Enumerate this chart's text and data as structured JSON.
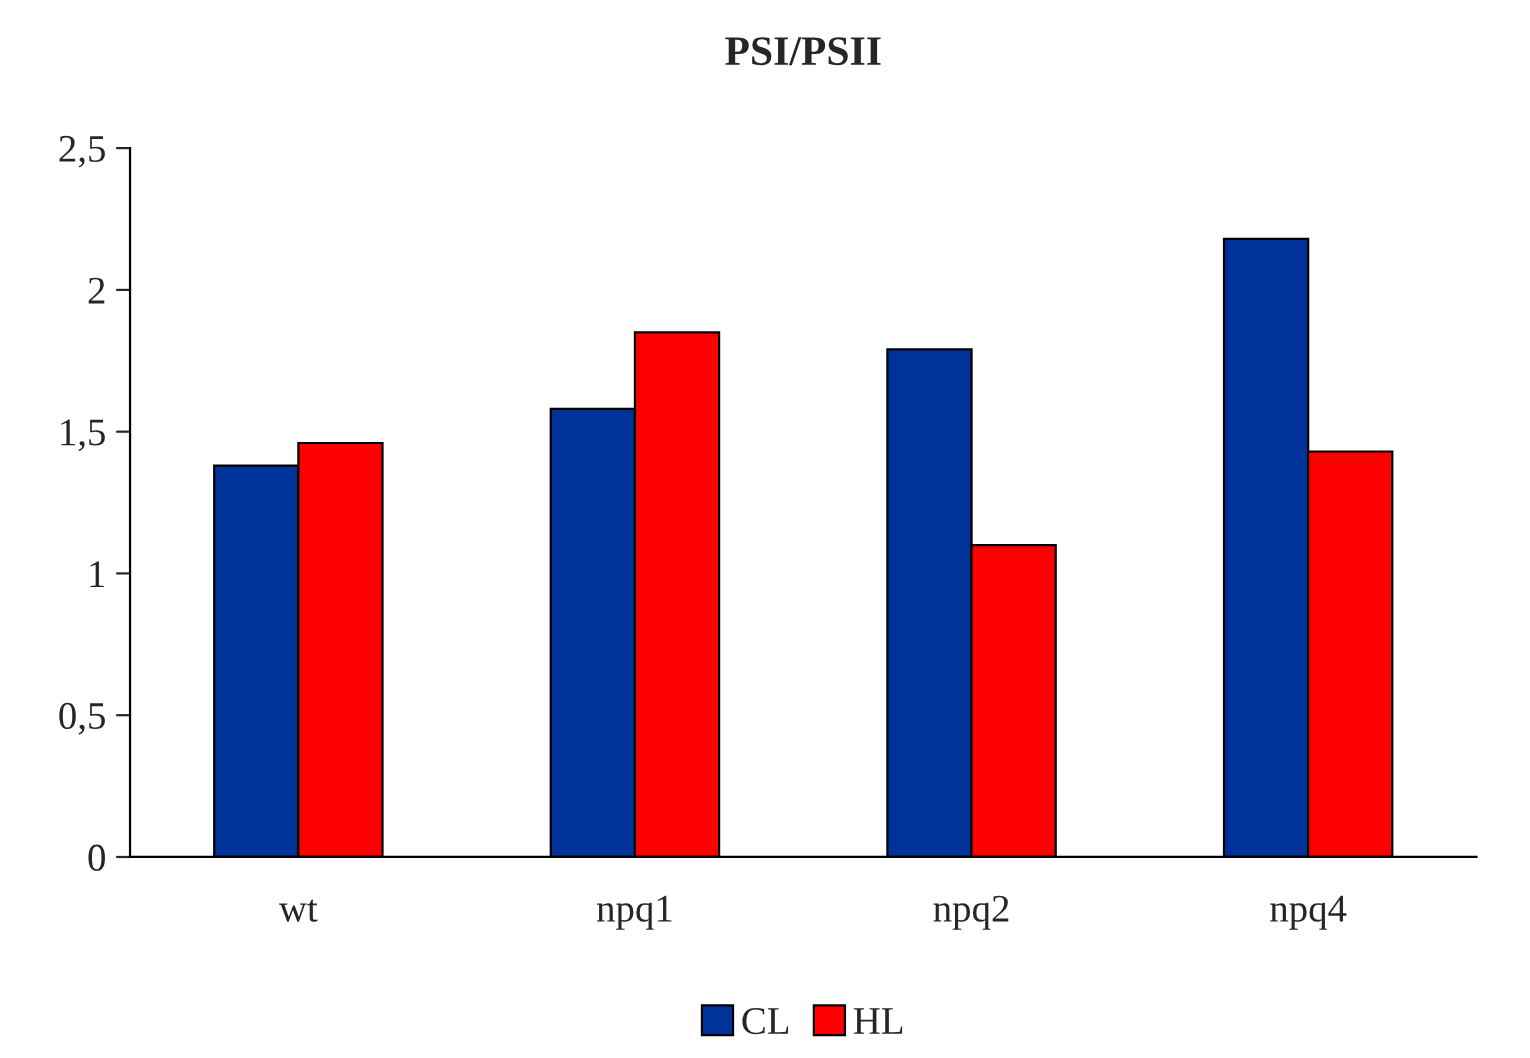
{
  "chart_data": {
    "type": "bar",
    "title": "PSI/PSII",
    "categories": [
      "wt",
      "npq1",
      "npq2",
      "npq4"
    ],
    "series": [
      {
        "name": "CL",
        "color": "#003399",
        "values": [
          1.38,
          1.58,
          1.79,
          2.18
        ]
      },
      {
        "name": "HL",
        "color": "#ff0000",
        "values": [
          1.46,
          1.85,
          1.1,
          1.43
        ]
      }
    ],
    "ylim": [
      0,
      2.5
    ],
    "yticks": [
      0,
      {
        "value": 0.5,
        "label": "0,5"
      },
      1,
      {
        "value": 1.5,
        "label": "1,5"
      },
      2,
      {
        "value": 2.5,
        "label": "2,5"
      }
    ],
    "grid": false,
    "legend": "bottom"
  }
}
